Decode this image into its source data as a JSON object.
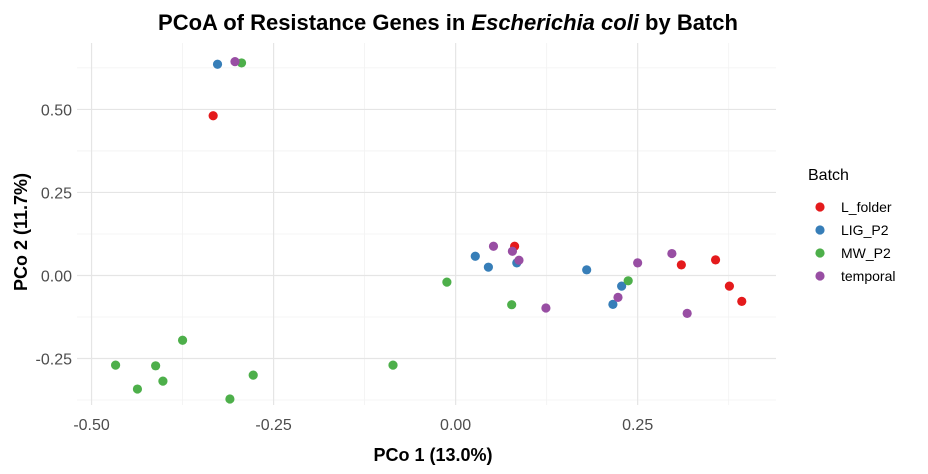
{
  "chart_data": {
    "type": "scatter",
    "title_prefix": "PCoA of Resistance Genes in ",
    "title_italic": "Escherichia coli",
    "title_suffix": " by Batch",
    "xlabel": "PCo 1 (13.0%)",
    "ylabel": "PCo 2 (11.7%)",
    "xlim": [
      -0.52,
      0.44
    ],
    "ylim": [
      -0.39,
      0.7
    ],
    "xticks": [
      -0.5,
      -0.25,
      0,
      0.25
    ],
    "xtick_labels": [
      "-0.50",
      "-0.25",
      "0.00",
      "0.25"
    ],
    "yticks": [
      -0.25,
      0,
      0.25,
      0.5
    ],
    "ytick_labels": [
      "-0.25",
      "0.00",
      "0.25",
      "0.50"
    ],
    "grid": true,
    "legend": {
      "title": "Batch",
      "position": "right"
    },
    "series": [
      {
        "name": "L_folder",
        "color": "#E41A1C",
        "points": [
          [
            -0.333,
            0.481
          ],
          [
            0.081,
            0.088
          ],
          [
            0.31,
            0.032
          ],
          [
            0.357,
            0.047
          ],
          [
            0.376,
            -0.032
          ],
          [
            0.393,
            -0.078
          ]
        ]
      },
      {
        "name": "LIG_P2",
        "color": "#377EB8",
        "points": [
          [
            -0.327,
            0.636
          ],
          [
            0.027,
            0.058
          ],
          [
            0.045,
            0.025
          ],
          [
            0.084,
            0.038
          ],
          [
            0.18,
            0.017
          ],
          [
            0.228,
            -0.032
          ],
          [
            0.216,
            -0.087
          ]
        ]
      },
      {
        "name": "MW_P2",
        "color": "#4DAF4A",
        "points": [
          [
            -0.294,
            0.64
          ],
          [
            -0.375,
            -0.195
          ],
          [
            -0.467,
            -0.27
          ],
          [
            -0.412,
            -0.272
          ],
          [
            -0.402,
            -0.318
          ],
          [
            -0.437,
            -0.342
          ],
          [
            -0.278,
            -0.3
          ],
          [
            -0.31,
            -0.372
          ],
          [
            -0.086,
            -0.27
          ],
          [
            -0.012,
            -0.02
          ],
          [
            0.077,
            -0.088
          ],
          [
            0.237,
            -0.016
          ]
        ]
      },
      {
        "name": "temporal",
        "color": "#984EA3",
        "points": [
          [
            -0.303,
            0.644
          ],
          [
            0.052,
            0.088
          ],
          [
            0.078,
            0.073
          ],
          [
            0.087,
            0.046
          ],
          [
            0.124,
            -0.098
          ],
          [
            0.223,
            -0.066
          ],
          [
            0.25,
            0.038
          ],
          [
            0.297,
            0.066
          ],
          [
            0.318,
            -0.114
          ]
        ]
      }
    ]
  }
}
